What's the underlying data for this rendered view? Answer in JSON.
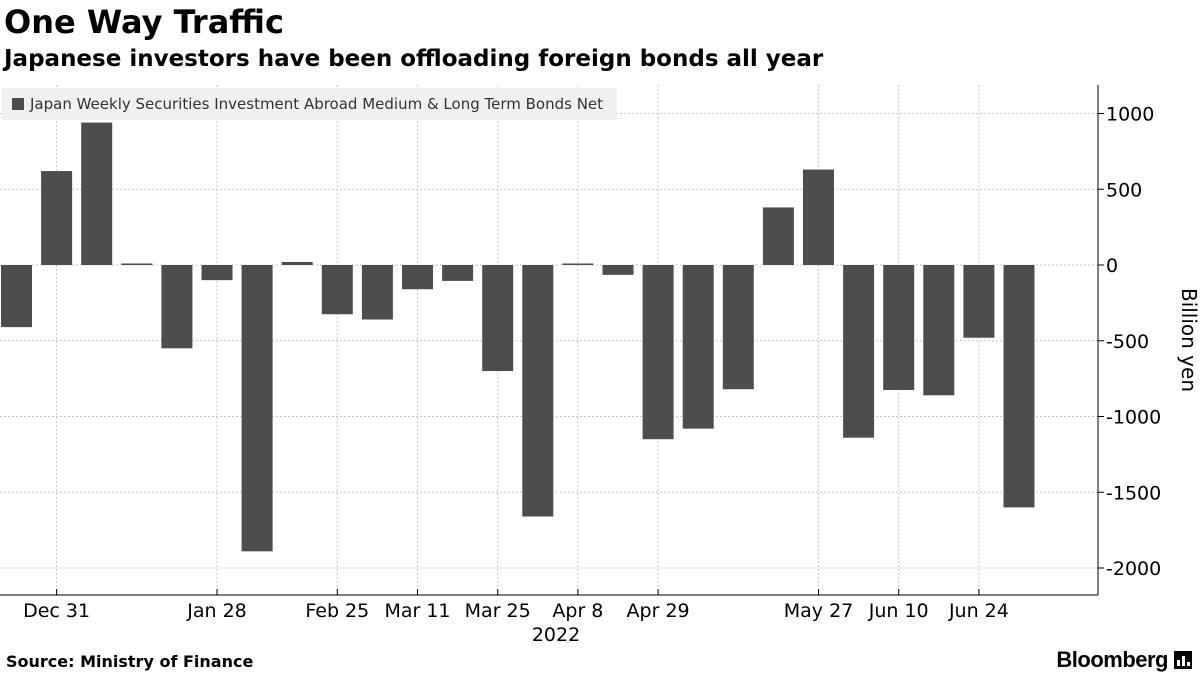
{
  "header": {
    "title": "One Way Traffic",
    "subtitle": "Japanese investors have been offloading foreign bonds all year"
  },
  "footer": {
    "source": "Source: Ministry of Finance",
    "brand": "Bloomberg"
  },
  "colors": {
    "bar": "#4d4d4d",
    "grid": "#c8c8c8",
    "legend_bg": "#f0f0f0"
  },
  "chart_data": {
    "type": "bar",
    "title": "One Way Traffic",
    "subtitle": "Japanese investors have been offloading foreign bonds all year",
    "ylabel": "Billion yen",
    "year_label": "2022",
    "ylim": [
      -2200,
      1200
    ],
    "y_ticks": [
      1000,
      500,
      0,
      -500,
      -1000,
      -1500,
      -2000
    ],
    "grid": true,
    "legend_position": "top-left",
    "x_tick_labels": [
      "Dec 31",
      "Jan 28",
      "Feb 25",
      "Mar 11",
      "Mar 25",
      "Apr 8",
      "Apr 29",
      "May 27",
      "Jun 10",
      "Jun 24"
    ],
    "series": [
      {
        "name": "Japan Weekly Securities Investment Abroad Medium & Long Term Bonds Net",
        "values": [
          -410,
          620,
          940,
          10,
          -550,
          -100,
          -1890,
          20,
          -325,
          -360,
          -160,
          -105,
          -700,
          -1660,
          10,
          -65,
          -1150,
          -1080,
          -820,
          380,
          630,
          -1140,
          -825,
          -860,
          -480,
          -1600
        ]
      }
    ]
  }
}
